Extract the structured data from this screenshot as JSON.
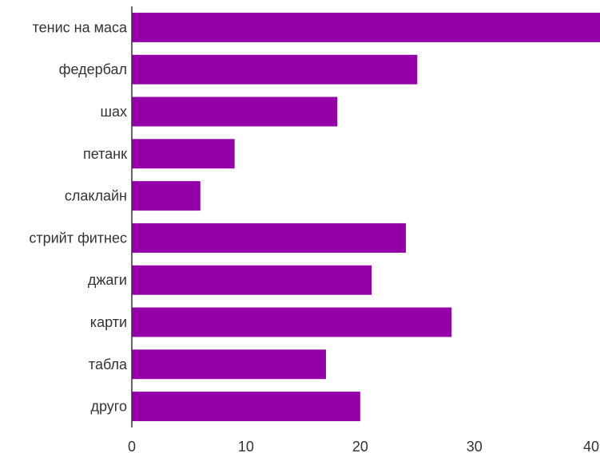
{
  "chart_data": {
    "type": "bar",
    "orientation": "horizontal",
    "title": "",
    "xlabel": "",
    "ylabel": "",
    "categories": [
      "тенис на маса",
      "федербал",
      "шах",
      "петанк",
      "слаклайн",
      "стрийт фитнес",
      "джаги",
      "карти",
      "табла",
      "друго"
    ],
    "values": [
      41,
      25,
      18,
      9,
      6,
      24,
      21,
      28,
      17,
      20
    ],
    "xlim": [
      0,
      41
    ],
    "xticks": [
      0,
      10,
      20,
      30,
      40
    ],
    "grid": false,
    "legend": "none",
    "bar_color": "#9400a8",
    "axis_color": "#333333"
  }
}
